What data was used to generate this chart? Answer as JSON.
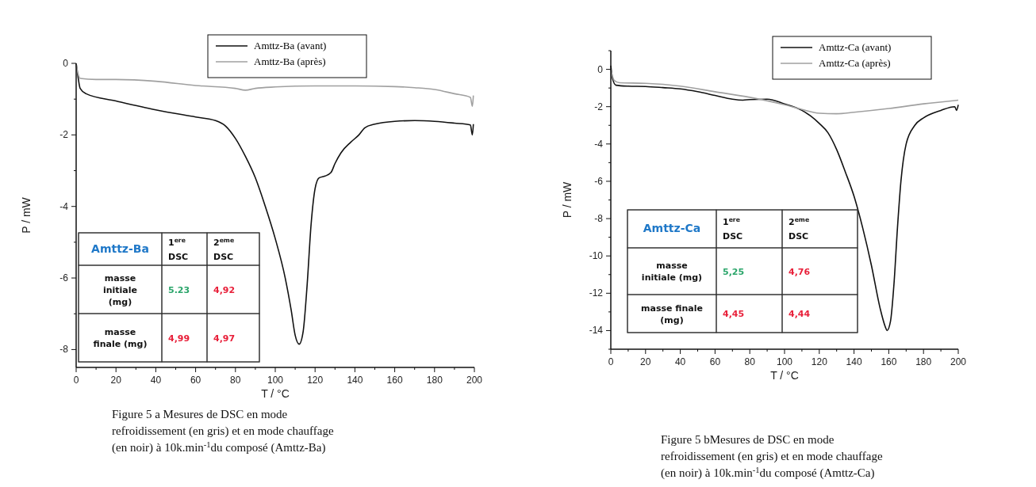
{
  "chart_data": [
    {
      "type": "line",
      "xlabel": "T / °C",
      "ylabel": "P / mW",
      "xlim": [
        0,
        200
      ],
      "ylim": [
        -8.5,
        0
      ],
      "xticks": [
        0,
        {
          "value": 10,
          "label": null
        },
        20,
        {
          "value": 30,
          "label": null
        },
        40,
        {
          "value": 50,
          "label": null
        },
        60,
        {
          "value": 70,
          "label": null
        },
        80,
        {
          "value": 90,
          "label": null
        },
        100,
        {
          "value": 110,
          "label": null
        },
        120,
        {
          "value": 130,
          "label": null
        },
        140,
        {
          "value": 150,
          "label": null
        },
        160,
        {
          "value": 170,
          "label": null
        },
        180,
        {
          "value": 190,
          "label": null
        },
        200
      ],
      "yticks": [
        -8,
        {
          "value": -7,
          "label": null
        },
        -6,
        {
          "value": -5,
          "label": null
        },
        -4,
        {
          "value": -3,
          "label": null
        },
        -2,
        {
          "value": -1,
          "label": null
        },
        0
      ],
      "grid": false,
      "legend": "top",
      "line_style": "solid",
      "marker": "none",
      "series": [
        {
          "name": "Amttz-Ba (avant)",
          "color": "#111111",
          "x": [
            0,
            1,
            2,
            5,
            20,
            40,
            60,
            70,
            75,
            80,
            85,
            90,
            95,
            100,
            105,
            108,
            110,
            112,
            114,
            116,
            118,
            120,
            122,
            125,
            128,
            130,
            133,
            138,
            142,
            145,
            150,
            160,
            170,
            180,
            190,
            198,
            199,
            199.5
          ],
          "values": [
            0,
            -0.4,
            -0.7,
            -0.85,
            -1.05,
            -1.3,
            -1.5,
            -1.6,
            -1.75,
            -2.1,
            -2.6,
            -3.2,
            -4.0,
            -4.9,
            -6.0,
            -6.9,
            -7.6,
            -7.85,
            -7.5,
            -6.2,
            -4.5,
            -3.5,
            -3.2,
            -3.15,
            -3.05,
            -2.8,
            -2.5,
            -2.2,
            -2.0,
            -1.8,
            -1.7,
            -1.62,
            -1.6,
            -1.62,
            -1.67,
            -1.72,
            -2.0,
            -1.7
          ]
        },
        {
          "name": "Amttz-Ba (après)",
          "color": "#a0a0a0",
          "x": [
            0,
            1,
            2,
            10,
            20,
            40,
            60,
            80,
            85,
            90,
            100,
            120,
            140,
            160,
            170,
            180,
            190,
            198,
            199,
            199.5
          ],
          "values": [
            0,
            -0.3,
            -0.42,
            -0.45,
            -0.45,
            -0.5,
            -0.62,
            -0.7,
            -0.75,
            -0.7,
            -0.66,
            -0.63,
            -0.63,
            -0.65,
            -0.68,
            -0.73,
            -0.85,
            -0.95,
            -1.2,
            -0.9
          ]
        }
      ],
      "annotations": [
        "Figure 5 a Mesures de DSC en mode refroidissement (en gris) et en mode chauffage (en noir) à 10k.min$^{-1}$du composé (Amttz-Ba)",
        "Amttz-Ba",
        "1$^{ere}$ DSC",
        "2$^{eme}$ DSC",
        "masse initiale (mg)",
        "5.23",
        "4,92",
        "masse finale (mg)",
        "4,99",
        "4,97"
      ]
    },
    {
      "type": "line",
      "xlabel": "T / °C",
      "ylabel": "P / mW",
      "xlim": [
        0,
        200
      ],
      "ylim": [
        -15,
        1
      ],
      "xticks": [
        0,
        {
          "value": 10,
          "label": null
        },
        20,
        {
          "value": 30,
          "label": null
        },
        40,
        {
          "value": 50,
          "label": null
        },
        60,
        {
          "value": 70,
          "label": null
        },
        80,
        {
          "value": 90,
          "label": null
        },
        100,
        {
          "value": 110,
          "label": null
        },
        120,
        {
          "value": 130,
          "label": null
        },
        140,
        {
          "value": 150,
          "label": null
        },
        160,
        {
          "value": 170,
          "label": null
        },
        180,
        {
          "value": 190,
          "label": null
        },
        200
      ],
      "yticks": [
        {
          "value": -15,
          "label": null
        },
        -14,
        {
          "value": -13,
          "label": null
        },
        -12,
        {
          "value": -11,
          "label": null
        },
        -10,
        {
          "value": -9,
          "label": null
        },
        -8,
        {
          "value": -7,
          "label": null
        },
        -6,
        {
          "value": -5,
          "label": null
        },
        -4,
        {
          "value": -3,
          "label": null
        },
        -2,
        {
          "value": -1,
          "label": null
        },
        0,
        {
          "value": 1,
          "label": null
        }
      ],
      "grid": false,
      "legend": "top right",
      "line_style": "solid",
      "marker": "none",
      "series": [
        {
          "name": "Amttz-Ca (avant)",
          "color": "#111111",
          "x": [
            0,
            1,
            3,
            10,
            20,
            30,
            40,
            50,
            60,
            70,
            76,
            80,
            90,
            100,
            110,
            115,
            120,
            125,
            130,
            135,
            140,
            145,
            150,
            155,
            158,
            159,
            161,
            163,
            165,
            167,
            170,
            175,
            180,
            190,
            198,
            199,
            200
          ],
          "values": [
            0.2,
            -0.5,
            -0.85,
            -0.9,
            -0.92,
            -0.98,
            -1.05,
            -1.2,
            -1.4,
            -1.6,
            -1.65,
            -1.62,
            -1.6,
            -1.85,
            -2.2,
            -2.5,
            -2.9,
            -3.4,
            -4.3,
            -5.5,
            -6.8,
            -8.5,
            -10.5,
            -12.8,
            -13.8,
            -14.0,
            -13.5,
            -11.5,
            -8.5,
            -6.0,
            -4.0,
            -3.0,
            -2.6,
            -2.2,
            -2.0,
            -2.2,
            -1.9
          ]
        },
        {
          "name": "Amttz-Ca (après)",
          "color": "#a0a0a0",
          "x": [
            0,
            2,
            5,
            20,
            40,
            60,
            80,
            100,
            110,
            120,
            130,
            140,
            160,
            180,
            200
          ],
          "values": [
            0,
            -0.6,
            -0.72,
            -0.75,
            -0.9,
            -1.2,
            -1.5,
            -1.9,
            -2.15,
            -2.35,
            -2.38,
            -2.3,
            -2.1,
            -1.85,
            -1.65
          ]
        }
      ],
      "annotations": [
        "Figure 5 bMesures de DSC en mode refroidissement (en gris) et en mode chauffage (en noir) à 10k.min$^{-1}$du composé (Amttz-Ca)",
        "Amttz-Ca",
        "1$^{ere}$ DSC",
        "2$^{eme}$ DSC",
        "masse initiale (mg)",
        "5,25",
        "4,76",
        "masse finale (mg)",
        "4,45",
        "4,44"
      ]
    }
  ]
}
